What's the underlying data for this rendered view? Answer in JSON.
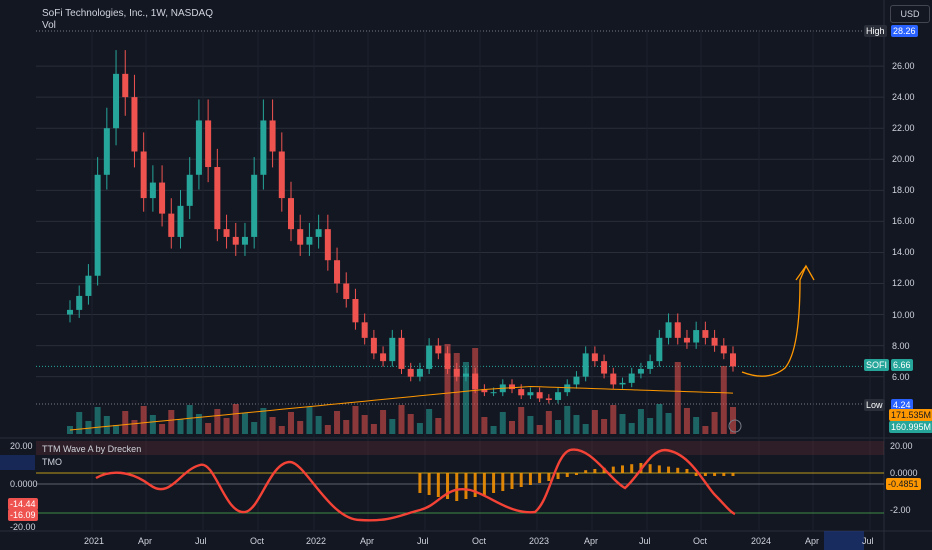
{
  "header": {
    "title": "SoFi Technologies, Inc., 1W, NASDAQ",
    "volume_label": "Vol",
    "currency_button": "USD"
  },
  "colors": {
    "background": "#131722",
    "up": "#26a69a",
    "down": "#ef5350",
    "grid": "#2a2e39",
    "text": "#d1d4dc",
    "orange": "#ff9800",
    "wave_green": "#4caf50",
    "wave_red": "#f44336",
    "tmo_orange": "#ff9800"
  },
  "price_axis": {
    "ticks": [
      "26.00",
      "24.00",
      "22.00",
      "20.00",
      "18.00",
      "16.00",
      "14.00",
      "12.00",
      "10.00",
      "8.00",
      "6.00"
    ],
    "high_label": "High",
    "high_value": "28.26",
    "low_label": "Low",
    "low_value": "4.24",
    "symbol_label": "SOFI",
    "last_price": "6.66",
    "vol_ma_value": "171.535M",
    "volume_value": "160.995M"
  },
  "indicator_axis": {
    "top_label": "20.00",
    "left_zero": "0.0000",
    "right_zero": "0.0000",
    "tmo_value": "-0.4851",
    "minus_two": "-2.00",
    "left_minus_20": "-20.00",
    "wave_value_a": "-14.44",
    "wave_value_b": "-16.09"
  },
  "indicators": {
    "wave_name": "TTM Wave A by Drecken",
    "tmo_name": "TMO"
  },
  "time_axis": {
    "labels": [
      "2021",
      "Apr",
      "Jul",
      "Oct",
      "2022",
      "Apr",
      "Jul",
      "Oct",
      "2023",
      "Apr",
      "Jul",
      "Oct",
      "2024",
      "Apr",
      "Jul"
    ]
  },
  "chart_data": {
    "type": "candlestick",
    "title": "SoFi Technologies, Inc., 1W, NASDAQ",
    "ylim": [
      3.5,
      29.0
    ],
    "scale": "linear",
    "grid": true,
    "high": 28.26,
    "low": 4.24,
    "last": 6.66,
    "closes": [
      10.3,
      11.2,
      12.5,
      19.0,
      22.0,
      25.5,
      24.0,
      20.5,
      17.5,
      18.5,
      16.5,
      15.0,
      17.0,
      19.0,
      22.5,
      19.5,
      15.5,
      15.0,
      14.5,
      15.0,
      19.0,
      22.5,
      20.5,
      17.5,
      15.5,
      14.5,
      15.0,
      15.5,
      13.5,
      12.0,
      11.0,
      9.5,
      8.5,
      7.5,
      7.0,
      8.5,
      6.5,
      6.0,
      6.5,
      8.0,
      7.5,
      6.5,
      6.0,
      6.2,
      5.2,
      5.0,
      5.0,
      5.5,
      5.2,
      4.8,
      5.0,
      4.6,
      4.5,
      5.0,
      5.5,
      6.0,
      7.5,
      7.0,
      6.2,
      5.5,
      5.6,
      6.2,
      6.5,
      7.0,
      8.5,
      9.5,
      8.5,
      8.2,
      9.0,
      8.5,
      8.0,
      7.5,
      6.66
    ]
  }
}
